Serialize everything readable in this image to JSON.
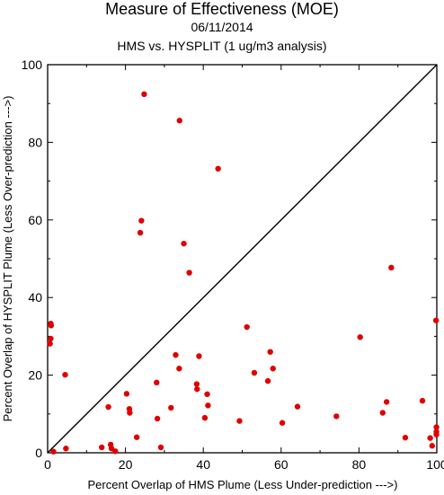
{
  "chart_data": {
    "type": "scatter",
    "title": "Measure of Effectiveness (MOE)",
    "subtitle": "06/11/2014",
    "subtitle2": "HMS vs. HYSPLIT  (1 ug/m3 analysis)",
    "xlabel": "Percent Overlap of HMS Plume (Less Under-prediction --->)",
    "ylabel": "Percent Overlap of HYSPLIT Plume (Less Over-prediction --->)",
    "xlim": [
      0,
      100
    ],
    "ylim": [
      0,
      100
    ],
    "xticks": [
      "0",
      "20",
      "40",
      "60",
      "80",
      "100"
    ],
    "yticks": [
      "0",
      "20",
      "40",
      "60",
      "80",
      "100"
    ],
    "grid": false,
    "reference_line": "diagonal",
    "marker_color": "#e00000",
    "points": [
      {
        "x": 0.8,
        "y": 33.3
      },
      {
        "x": 0.9,
        "y": 32.8
      },
      {
        "x": 0.8,
        "y": 29.4
      },
      {
        "x": 0.6,
        "y": 28.1
      },
      {
        "x": 1.5,
        "y": 0.3
      },
      {
        "x": 4.5,
        "y": 20.1
      },
      {
        "x": 4.7,
        "y": 1.1
      },
      {
        "x": 13.9,
        "y": 1.4
      },
      {
        "x": 15.6,
        "y": 11.8
      },
      {
        "x": 16.2,
        "y": 2.1
      },
      {
        "x": 16.4,
        "y": 1.1
      },
      {
        "x": 17.4,
        "y": 0.4
      },
      {
        "x": 20.3,
        "y": 15.2
      },
      {
        "x": 21.0,
        "y": 11.3
      },
      {
        "x": 21.1,
        "y": 10.3
      },
      {
        "x": 22.9,
        "y": 4.0
      },
      {
        "x": 23.8,
        "y": 56.7
      },
      {
        "x": 24.1,
        "y": 59.8
      },
      {
        "x": 24.8,
        "y": 92.4
      },
      {
        "x": 28.0,
        "y": 18.1
      },
      {
        "x": 28.2,
        "y": 8.8
      },
      {
        "x": 29.1,
        "y": 1.4
      },
      {
        "x": 31.7,
        "y": 11.6
      },
      {
        "x": 32.9,
        "y": 25.2
      },
      {
        "x": 33.8,
        "y": 21.7
      },
      {
        "x": 33.9,
        "y": 85.6
      },
      {
        "x": 35.0,
        "y": 53.9
      },
      {
        "x": 36.4,
        "y": 46.4
      },
      {
        "x": 38.3,
        "y": 17.7
      },
      {
        "x": 38.4,
        "y": 16.4
      },
      {
        "x": 38.9,
        "y": 24.9
      },
      {
        "x": 40.4,
        "y": 9.0
      },
      {
        "x": 41.0,
        "y": 15.1
      },
      {
        "x": 41.2,
        "y": 12.2
      },
      {
        "x": 43.8,
        "y": 73.2
      },
      {
        "x": 49.3,
        "y": 8.2
      },
      {
        "x": 51.2,
        "y": 32.4
      },
      {
        "x": 53.1,
        "y": 20.6
      },
      {
        "x": 56.6,
        "y": 18.5
      },
      {
        "x": 57.2,
        "y": 26.0
      },
      {
        "x": 57.9,
        "y": 21.7
      },
      {
        "x": 60.3,
        "y": 7.7
      },
      {
        "x": 64.2,
        "y": 11.9
      },
      {
        "x": 74.2,
        "y": 9.4
      },
      {
        "x": 80.3,
        "y": 29.8
      },
      {
        "x": 86.1,
        "y": 10.3
      },
      {
        "x": 87.1,
        "y": 13.1
      },
      {
        "x": 88.3,
        "y": 47.7
      },
      {
        "x": 91.9,
        "y": 3.9
      },
      {
        "x": 96.3,
        "y": 13.4
      },
      {
        "x": 98.3,
        "y": 3.8
      },
      {
        "x": 98.8,
        "y": 1.8
      },
      {
        "x": 99.8,
        "y": 34.1
      },
      {
        "x": 99.9,
        "y": 6.6
      },
      {
        "x": 99.9,
        "y": 5.4
      },
      {
        "x": 99.9,
        "y": 4.7
      }
    ]
  }
}
